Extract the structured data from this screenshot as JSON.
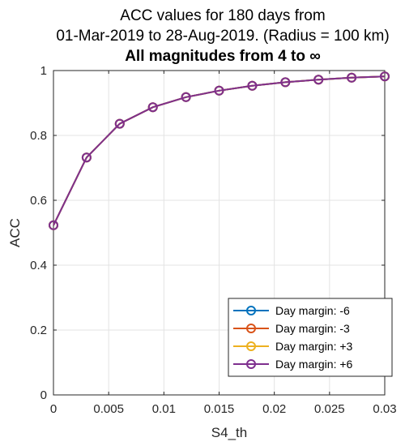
{
  "chart_data": {
    "type": "line",
    "title_lines": [
      "ACC values for 180 days from",
      "01-Mar-2019 to 28-Aug-2019. (Radius = 100 km)"
    ],
    "subtitle": "All magnitudes from 4 to ∞",
    "xlabel": "S4_th",
    "ylabel": "ACC",
    "xlim": [
      0,
      0.03
    ],
    "ylim": [
      0,
      1
    ],
    "xticks": [
      0,
      0.005,
      0.01,
      0.015,
      0.02,
      0.025,
      0.03
    ],
    "xtick_labels": [
      "0",
      "0.005",
      "0.01",
      "0.015",
      "0.02",
      "0.025",
      "0.03"
    ],
    "yticks": [
      0,
      0.2,
      0.4,
      0.6,
      0.8,
      1
    ],
    "ytick_labels": [
      "0",
      "0.2",
      "0.4",
      "0.6",
      "0.8",
      "1"
    ],
    "grid": true,
    "legend_position": "bottom-right",
    "x": [
      0,
      0.003,
      0.006,
      0.009,
      0.012,
      0.015,
      0.018,
      0.021,
      0.024,
      0.027,
      0.03
    ],
    "series": [
      {
        "name": "Day margin: -6",
        "color": "#0072BD",
        "values": [
          0.523,
          0.732,
          0.836,
          0.887,
          0.918,
          0.938,
          0.953,
          0.964,
          0.972,
          0.978,
          0.982
        ]
      },
      {
        "name": "Day margin: -3",
        "color": "#D95319",
        "values": [
          0.523,
          0.732,
          0.836,
          0.887,
          0.918,
          0.938,
          0.953,
          0.964,
          0.972,
          0.978,
          0.982
        ]
      },
      {
        "name": "Day margin: +3",
        "color": "#EDB120",
        "values": [
          0.523,
          0.732,
          0.836,
          0.887,
          0.918,
          0.938,
          0.953,
          0.964,
          0.972,
          0.978,
          0.982
        ]
      },
      {
        "name": "Day margin: +6",
        "color": "#7E2F8E",
        "values": [
          0.523,
          0.732,
          0.836,
          0.887,
          0.918,
          0.938,
          0.953,
          0.964,
          0.972,
          0.978,
          0.982
        ]
      }
    ]
  }
}
